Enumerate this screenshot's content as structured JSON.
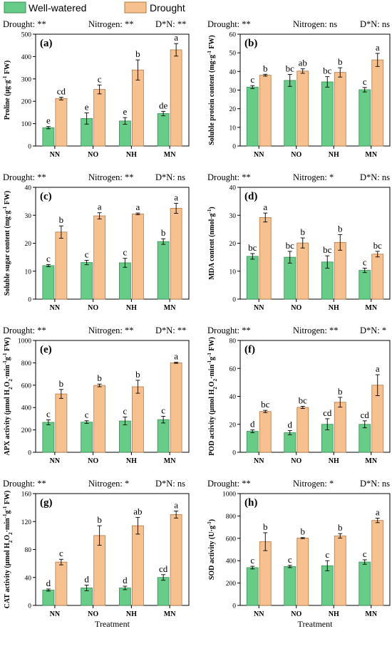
{
  "legend": {
    "items": [
      {
        "label": "Well-watered",
        "color": "#66cc88",
        "border": "#3b8f55"
      },
      {
        "label": "Drought",
        "color": "#f7c08f",
        "border": "#b27a45"
      }
    ]
  },
  "xlabel": "Treatment",
  "chart_data": [
    {
      "type": "bar",
      "panel": "(a)",
      "ylabel_parts": [
        "Proline (μg·g",
        "-1",
        " FW)"
      ],
      "ylim": [
        0,
        500
      ],
      "yticks": [
        0,
        100,
        200,
        300,
        400,
        500
      ],
      "categories": [
        "NN",
        "NO",
        "NH",
        "MN"
      ],
      "significance": [
        "Drought: **",
        "Nitrogen: **",
        "D*N: **"
      ],
      "series": [
        {
          "name": "Well-watered",
          "values": [
            82,
            123,
            112,
            145
          ],
          "errors": [
            5,
            25,
            15,
            10
          ],
          "letters": [
            "e",
            "e",
            "e",
            "de"
          ]
        },
        {
          "name": "Drought",
          "values": [
            212,
            253,
            340,
            430
          ],
          "errors": [
            6,
            20,
            45,
            28
          ],
          "letters": [
            "cd",
            "c",
            "b",
            "a"
          ]
        }
      ]
    },
    {
      "type": "bar",
      "panel": "(b)",
      "ylabel_parts": [
        "Soluble protein content (mg·g",
        "-1",
        " FW)"
      ],
      "ylim": [
        0,
        60
      ],
      "yticks": [
        0,
        10,
        20,
        30,
        40,
        50,
        60
      ],
      "categories": [
        "NN",
        "NO",
        "NH",
        "MN"
      ],
      "significance": [
        "Drought: **",
        "Nitrogen: ns",
        "D*N: ns"
      ],
      "series": [
        {
          "name": "Well-watered",
          "values": [
            31.6,
            35.2,
            34.4,
            30.2
          ],
          "errors": [
            0.8,
            3.2,
            2.8,
            1.2
          ],
          "letters": [
            "c",
            "bc",
            "bc",
            "c"
          ]
        },
        {
          "name": "Drought",
          "values": [
            38,
            40.2,
            39.5,
            46.2
          ],
          "errors": [
            0.5,
            1.2,
            2.5,
            3.5
          ],
          "letters": [
            "b",
            "ab",
            "b",
            "a"
          ]
        }
      ]
    },
    {
      "type": "bar",
      "panel": "(c)",
      "ylabel_parts": [
        "Soluble sugar content (mg·g",
        "-1",
        " FW)"
      ],
      "ylim": [
        0,
        40
      ],
      "yticks": [
        0,
        10,
        20,
        30,
        40
      ],
      "categories": [
        "NN",
        "NO",
        "NH",
        "MN"
      ],
      "significance": [
        "Drought: **",
        "Nitrogen: **",
        "D*N: ns"
      ],
      "series": [
        {
          "name": "Well-watered",
          "values": [
            12,
            13.1,
            13,
            20.6
          ],
          "errors": [
            0.4,
            0.8,
            1.6,
            1
          ],
          "letters": [
            "c",
            "c",
            "c",
            "b"
          ]
        },
        {
          "name": "Drought",
          "values": [
            24,
            29.8,
            30.5,
            32.5
          ],
          "errors": [
            2.2,
            1.1,
            0.3,
            1.8
          ],
          "letters": [
            "b",
            "a",
            "a",
            "a"
          ]
        }
      ]
    },
    {
      "type": "bar",
      "panel": "(d)",
      "ylabel_parts": [
        "MDA content (nmol·g",
        "-1",
        ")"
      ],
      "ylim": [
        0,
        40
      ],
      "yticks": [
        0,
        10,
        20,
        30,
        40
      ],
      "categories": [
        "NN",
        "NO",
        "NH",
        "MN"
      ],
      "significance": [
        "Drought: **",
        "Nitrogen: *",
        "D*N: ns"
      ],
      "series": [
        {
          "name": "Well-watered",
          "values": [
            15.3,
            15,
            13.3,
            10.3
          ],
          "errors": [
            1,
            2.1,
            2.2,
            0.8
          ],
          "letters": [
            "bc",
            "bc",
            "bc",
            "c"
          ]
        },
        {
          "name": "Drought",
          "values": [
            29.2,
            20.1,
            20.3,
            16.1
          ],
          "errors": [
            1.6,
            1.8,
            2.8,
            1
          ],
          "letters": [
            "a",
            "b",
            "b",
            "bc"
          ]
        }
      ]
    },
    {
      "type": "bar",
      "panel": "(e)",
      "ylabel_parts": [
        "APX activity (μmol H",
        "2",
        "O",
        "2",
        "·min",
        "-1",
        "g",
        "-1",
        " FW)"
      ],
      "ylabel_kinds": [
        "n",
        "sub",
        "n",
        "sub",
        "n",
        "sup",
        "n",
        "sup",
        "n"
      ],
      "ylim": [
        0,
        1000
      ],
      "yticks": [
        0,
        200,
        400,
        600,
        800,
        1000
      ],
      "categories": [
        "NN",
        "NO",
        "NH",
        "MN"
      ],
      "significance": [
        "Drought: **",
        "Nitrogen: **",
        "D*N: **"
      ],
      "series": [
        {
          "name": "Well-watered",
          "values": [
            268,
            270,
            280,
            292
          ],
          "errors": [
            22,
            12,
            35,
            30
          ],
          "letters": [
            "c",
            "c",
            "c",
            "c"
          ]
        },
        {
          "name": "Drought",
          "values": [
            522,
            598,
            586,
            800
          ],
          "errors": [
            40,
            12,
            58,
            5
          ],
          "letters": [
            "b",
            "b",
            "b",
            "a"
          ]
        }
      ]
    },
    {
      "type": "bar",
      "panel": "(f)",
      "ylabel_parts": [
        "POD activity (μmol H",
        "2",
        "O",
        "2",
        "·min",
        "-1",
        "g",
        "-1",
        " FW)"
      ],
      "ylabel_kinds": [
        "n",
        "sub",
        "n",
        "sub",
        "n",
        "sup",
        "n",
        "sup",
        "n"
      ],
      "ylim": [
        0,
        80
      ],
      "yticks": [
        0,
        20,
        40,
        60,
        80
      ],
      "categories": [
        "NN",
        "NO",
        "NH",
        "MN"
      ],
      "significance": [
        "Drought: **",
        "Nitrogen: **",
        "D*N: *"
      ],
      "series": [
        {
          "name": "Well-watered",
          "values": [
            15,
            14,
            20,
            20
          ],
          "errors": [
            1,
            1.5,
            4,
            2.5
          ],
          "letters": [
            "d",
            "d",
            "cd",
            "cd"
          ]
        },
        {
          "name": "Drought",
          "values": [
            29.2,
            32.1,
            35.8,
            48
          ],
          "errors": [
            0.8,
            0.8,
            3.5,
            7.5
          ],
          "letters": [
            "bc",
            "bc",
            "b",
            "a"
          ]
        }
      ]
    },
    {
      "type": "bar",
      "panel": "(g)",
      "ylabel_parts": [
        "CAT activity (μmol H",
        "2",
        "O",
        "2",
        "·min",
        "-1",
        "g",
        "-1",
        " FW)"
      ],
      "ylabel_kinds": [
        "n",
        "sub",
        "n",
        "sub",
        "n",
        "sup",
        "n",
        "sup",
        "n"
      ],
      "ylim": [
        0,
        160
      ],
      "yticks": [
        0,
        40,
        80,
        120,
        160
      ],
      "categories": [
        "NN",
        "NO",
        "NH",
        "MN"
      ],
      "significance": [
        "Drought: **",
        "Nitrogen: *",
        "D*N: ns"
      ],
      "series": [
        {
          "name": "Well-watered",
          "values": [
            22,
            25,
            25,
            40
          ],
          "errors": [
            1.5,
            4,
            2.5,
            4
          ],
          "letters": [
            "d",
            "d",
            "d",
            "cd"
          ]
        },
        {
          "name": "Drought",
          "values": [
            62,
            100,
            114,
            130
          ],
          "errors": [
            4,
            14,
            12,
            5
          ],
          "letters": [
            "c",
            "b",
            "ab",
            "a"
          ]
        }
      ]
    },
    {
      "type": "bar",
      "panel": "(h)",
      "ylabel_parts": [
        "SOD activity (U·g",
        "-1",
        ")"
      ],
      "ylim": [
        0,
        1000
      ],
      "yticks": [
        0,
        200,
        400,
        600,
        800,
        1000
      ],
      "categories": [
        "NN",
        "NO",
        "NH",
        "MN"
      ],
      "significance": [
        "Drought: **",
        "Nitrogen: *",
        "D*N: ns"
      ],
      "series": [
        {
          "name": "Well-watered",
          "values": [
            338,
            348,
            355,
            388
          ],
          "errors": [
            12,
            10,
            45,
            20
          ],
          "letters": [
            "c",
            "c",
            "c",
            "c"
          ]
        },
        {
          "name": "Drought",
          "values": [
            570,
            602,
            622,
            760
          ],
          "errors": [
            80,
            5,
            20,
            20
          ],
          "letters": [
            "b",
            "b",
            "b",
            "a"
          ]
        }
      ]
    }
  ]
}
